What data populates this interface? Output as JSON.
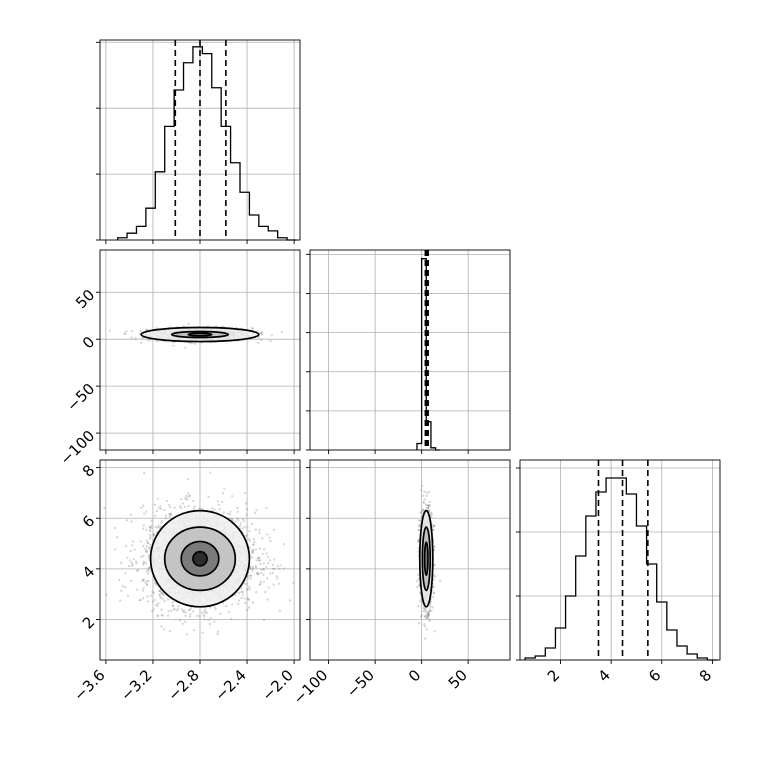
{
  "chart_data": {
    "type": "corner",
    "parameters": 3,
    "grid": true,
    "panels": [
      {
        "id": "hist-0",
        "kind": "hist",
        "row": 0,
        "col": 0,
        "xlim": [
          -3.65,
          -1.95
        ],
        "bins": [
          -3.5,
          -3.42,
          -3.34,
          -3.26,
          -3.18,
          -3.1,
          -3.02,
          -2.94,
          -2.86,
          -2.78,
          -2.7,
          -2.62,
          -2.54,
          -2.46,
          -2.38,
          -2.3,
          -2.22,
          -2.14,
          -2.06,
          -1.98
        ],
        "counts": [
          1,
          3,
          6,
          14,
          30,
          50,
          66,
          78,
          85,
          82,
          67,
          50,
          34,
          21,
          11,
          6,
          4,
          1,
          0
        ],
        "ymax": 88,
        "quantiles": [
          -3.01,
          -2.8,
          -2.58
        ]
      },
      {
        "id": "hist-1",
        "kind": "hist",
        "row": 1,
        "col": 1,
        "xlim": [
          -120,
          95
        ],
        "bins": [
          -5,
          0,
          5,
          10,
          15,
          20
        ],
        "counts": [
          3,
          88,
          13,
          1,
          0
        ],
        "ymax": 92,
        "quantiles": [
          4,
          5.5,
          7
        ]
      },
      {
        "id": "hist-2",
        "kind": "hist",
        "row": 2,
        "col": 2,
        "xlim": [
          0.4,
          8.3
        ],
        "bins": [
          0.6,
          1.0,
          1.4,
          1.8,
          2.2,
          2.6,
          3.0,
          3.4,
          3.8,
          4.2,
          4.6,
          5.0,
          5.4,
          5.8,
          6.2,
          6.6,
          7.0,
          7.4,
          7.8,
          8.2
        ],
        "counts": [
          1,
          2,
          6,
          16,
          32,
          52,
          72,
          84,
          91,
          91,
          83,
          67,
          48,
          29,
          15,
          7,
          3,
          1,
          0
        ],
        "ymax": 100,
        "quantiles": [
          3.5,
          4.45,
          5.45
        ]
      },
      {
        "id": "scatter-1-0",
        "kind": "density",
        "row": 1,
        "col": 0,
        "xlim": [
          -3.65,
          -1.95
        ],
        "ylim": [
          -118,
          95
        ],
        "center": [
          -2.8,
          5
        ],
        "spread": [
          0.22,
          3.5
        ],
        "contour_levels": [
          {
            "rx": 0.5,
            "ry": 7.5
          },
          {
            "rx": 0.24,
            "ry": 3.2
          },
          {
            "rx": 0.1,
            "ry": 1.4
          }
        ]
      },
      {
        "id": "scatter-2-0",
        "kind": "density",
        "row": 2,
        "col": 0,
        "xlim": [
          -3.65,
          -1.95
        ],
        "ylim": [
          0.4,
          8.3
        ],
        "center": [
          -2.8,
          4.4
        ],
        "spread": [
          0.24,
          0.95
        ],
        "contour_levels": [
          {
            "rx": 0.42,
            "ry": 1.9
          },
          {
            "rx": 0.3,
            "ry": 1.25
          },
          {
            "rx": 0.16,
            "ry": 0.68
          },
          {
            "rx": 0.06,
            "ry": 0.28
          }
        ]
      },
      {
        "id": "scatter-2-1",
        "kind": "density",
        "row": 2,
        "col": 1,
        "xlim": [
          -120,
          95
        ],
        "ylim": [
          0.4,
          8.3
        ],
        "center": [
          5,
          4.4
        ],
        "spread": [
          3.5,
          0.95
        ],
        "contour_levels": [
          {
            "rx": 7,
            "ry": 1.9
          },
          {
            "rx": 4.2,
            "ry": 1.25
          },
          {
            "rx": 1.8,
            "ry": 0.65
          }
        ]
      }
    ],
    "ticks": {
      "x0": [
        {
          "value": -3.6,
          "label": "−3.6"
        },
        {
          "value": -3.2,
          "label": "−3.2"
        },
        {
          "value": -2.8,
          "label": "−2.8"
        },
        {
          "value": -2.4,
          "label": "−2.4"
        },
        {
          "value": -2.0,
          "label": "−2.0"
        }
      ],
      "x1": [
        {
          "value": -100,
          "label": "−100"
        },
        {
          "value": -50,
          "label": "−50"
        },
        {
          "value": 0,
          "label": "0"
        },
        {
          "value": 50,
          "label": "50"
        }
      ],
      "x2": [
        {
          "value": 2,
          "label": "2"
        },
        {
          "value": 4,
          "label": "4"
        },
        {
          "value": 6,
          "label": "6"
        },
        {
          "value": 8,
          "label": "8"
        }
      ],
      "y1": [
        {
          "value": 50,
          "label": "50"
        },
        {
          "value": 0,
          "label": "0"
        },
        {
          "value": -50,
          "label": "−50"
        },
        {
          "value": -100,
          "label": "−100"
        }
      ],
      "y2": [
        {
          "value": 8,
          "label": "8"
        },
        {
          "value": 6,
          "label": "6"
        },
        {
          "value": 4,
          "label": "4"
        },
        {
          "value": 2,
          "label": "2"
        }
      ],
      "hist_y0": [
        0,
        29,
        58,
        87
      ],
      "hist_y1": [
        0,
        18,
        36,
        54,
        72,
        90
      ],
      "hist_y2": [
        0,
        32,
        64,
        96
      ]
    }
  }
}
